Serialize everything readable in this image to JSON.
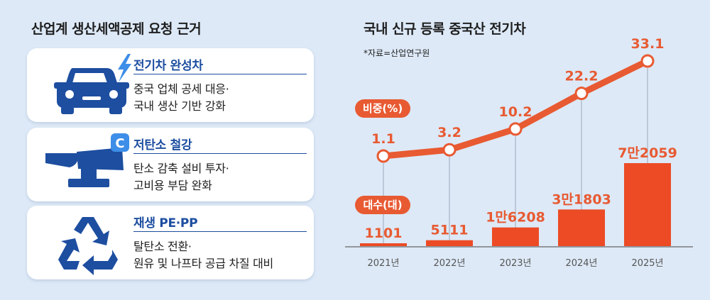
{
  "left": {
    "title": "산업계 생산세액공제 요청 근거",
    "cards": [
      {
        "title": "전기차 완성차",
        "line1": "중국 업체 공세 대응·",
        "line2": "국내 생산 기반 강화",
        "icon": "electric-car-icon"
      },
      {
        "title": "저탄소 철강",
        "line1": "탄소 감축 설비 투자·",
        "line2": "고비용 부담 완화",
        "icon": "low-carbon-steel-icon"
      },
      {
        "title": "재생 PE·PP",
        "line1": "탈탄소 전환·",
        "line2": "원유 및 나프타 공급 차질 대비",
        "icon": "recycle-icon"
      }
    ]
  },
  "chart": {
    "title": "국내 신규 등록 중국산 전기차",
    "source": "*자료=산업연구원"
  },
  "colors": {
    "background": "#dde9f7",
    "accent": "#e85a32",
    "navy": "#1d4ea0",
    "bar": "#ec4b25"
  },
  "chart_data": {
    "type": "bar+line",
    "categories": [
      "2021년",
      "2022년",
      "2023년",
      "2024년",
      "2025년"
    ],
    "series": [
      {
        "name": "비중(%)",
        "type": "line",
        "values": [
          1.1,
          3.2,
          10.2,
          22.2,
          33.1
        ],
        "labels": [
          "1.1",
          "3.2",
          "10.2",
          "22.2",
          "33.1"
        ]
      },
      {
        "name": "대수(대)",
        "type": "bar",
        "values": [
          1101,
          5111,
          16208,
          31803,
          72059
        ],
        "labels": [
          "1101",
          "5111",
          "1만6208",
          "3만1803",
          "7만2059"
        ]
      }
    ]
  }
}
